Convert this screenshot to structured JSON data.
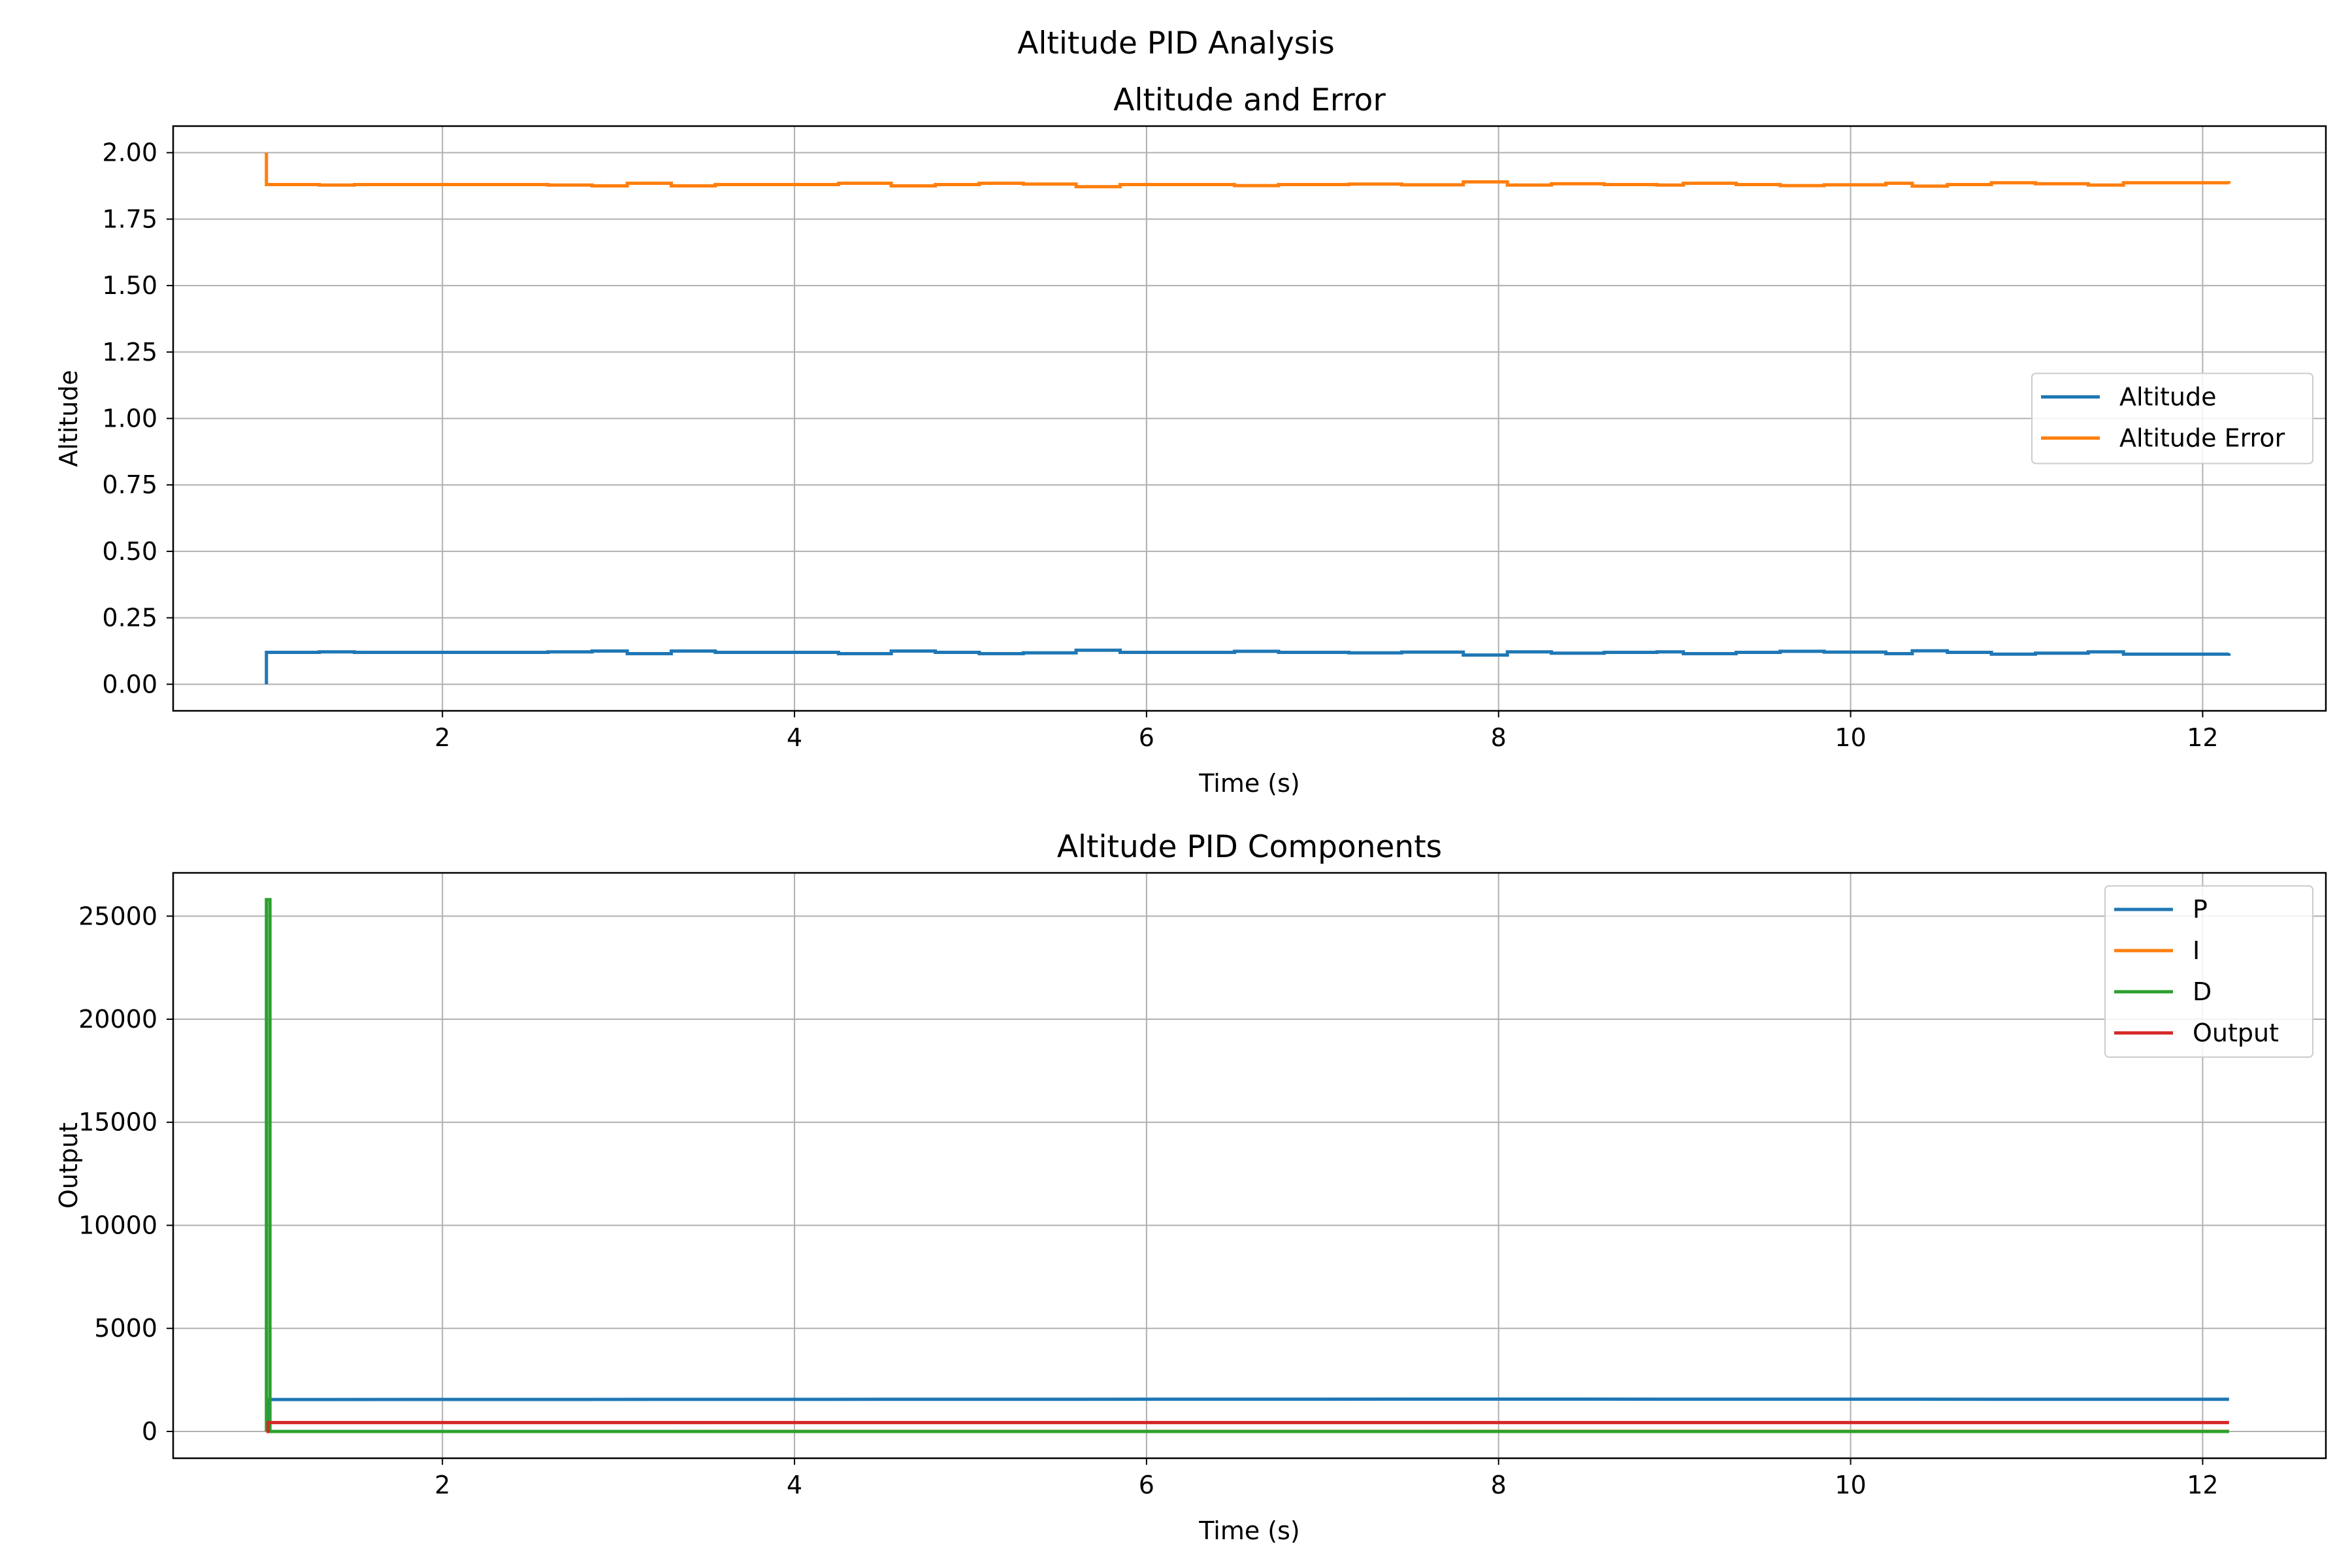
{
  "figure": {
    "suptitle": "Altitude PID Analysis"
  },
  "chart_data": [
    {
      "type": "line",
      "title": "Altitude and Error",
      "xlabel": "Time (s)",
      "ylabel": "Altitude",
      "xlim": [
        0.47,
        12.7
      ],
      "ylim": [
        -0.1,
        2.1
      ],
      "xticks": [
        2,
        4,
        6,
        8,
        10,
        12
      ],
      "xtick_labels": [
        "2",
        "4",
        "6",
        "8",
        "10",
        "12"
      ],
      "yticks": [
        0,
        0.25,
        0.5,
        0.75,
        1.0,
        1.25,
        1.5,
        1.75,
        2.0
      ],
      "ytick_labels": [
        "0.00",
        "0.25",
        "0.50",
        "0.75",
        "1.00",
        "1.25",
        "1.50",
        "1.75",
        "2.00"
      ],
      "grid": true,
      "legend_position": "center-right",
      "series": [
        {
          "name": "Altitude",
          "color": "#1f77b4",
          "step": true,
          "x": [
            1.0,
            1.0,
            1.3,
            1.5,
            2.6,
            2.85,
            3.05,
            3.3,
            3.55,
            4.25,
            4.55,
            4.8,
            5.05,
            5.3,
            5.6,
            5.85,
            6.5,
            6.75,
            7.15,
            7.45,
            7.8,
            8.05,
            8.3,
            8.6,
            8.9,
            9.05,
            9.35,
            9.6,
            9.85,
            10.2,
            10.35,
            10.55,
            10.8,
            11.05,
            11.35,
            11.55,
            12.15
          ],
          "y": [
            0.0,
            0.12,
            0.122,
            0.12,
            0.122,
            0.125,
            0.115,
            0.125,
            0.12,
            0.115,
            0.125,
            0.12,
            0.115,
            0.118,
            0.128,
            0.12,
            0.124,
            0.12,
            0.118,
            0.121,
            0.11,
            0.122,
            0.117,
            0.12,
            0.122,
            0.115,
            0.12,
            0.124,
            0.121,
            0.115,
            0.126,
            0.12,
            0.113,
            0.117,
            0.122,
            0.113,
            0.116
          ]
        },
        {
          "name": "Altitude Error",
          "color": "#ff7f0e",
          "step": true,
          "x": [
            1.0,
            1.0,
            1.3,
            1.5,
            2.6,
            2.85,
            3.05,
            3.3,
            3.55,
            4.25,
            4.55,
            4.8,
            5.05,
            5.3,
            5.6,
            5.85,
            6.5,
            6.75,
            7.15,
            7.45,
            7.8,
            8.05,
            8.3,
            8.6,
            8.9,
            9.05,
            9.35,
            9.6,
            9.85,
            10.2,
            10.35,
            10.55,
            10.8,
            11.05,
            11.35,
            11.55,
            12.15
          ],
          "y": [
            2.0,
            1.88,
            1.878,
            1.88,
            1.878,
            1.875,
            1.885,
            1.875,
            1.88,
            1.885,
            1.875,
            1.88,
            1.885,
            1.882,
            1.872,
            1.88,
            1.876,
            1.88,
            1.882,
            1.879,
            1.89,
            1.878,
            1.883,
            1.88,
            1.878,
            1.885,
            1.88,
            1.876,
            1.879,
            1.885,
            1.874,
            1.88,
            1.887,
            1.883,
            1.878,
            1.887,
            1.884
          ]
        }
      ]
    },
    {
      "type": "line",
      "title": "Altitude PID Components",
      "xlabel": "Time (s)",
      "ylabel": "Output",
      "xlim": [
        0.47,
        12.7
      ],
      "ylim": [
        -1300,
        27100
      ],
      "xticks": [
        2,
        4,
        6,
        8,
        10,
        12
      ],
      "xtick_labels": [
        "2",
        "4",
        "6",
        "8",
        "10",
        "12"
      ],
      "yticks": [
        0,
        5000,
        10000,
        15000,
        20000,
        25000
      ],
      "ytick_labels": [
        "0",
        "5000",
        "10000",
        "15000",
        "20000",
        "25000"
      ],
      "grid": true,
      "legend_position": "upper right",
      "series": [
        {
          "name": "P",
          "color": "#1f77b4",
          "x": [
            1.0,
            1.01,
            1.01,
            4.5,
            8.0,
            12.15
          ],
          "y": [
            0,
            0,
            1550,
            1560,
            1570,
            1560
          ]
        },
        {
          "name": "I",
          "color": "#ff7f0e",
          "x": [
            1.0,
            12.15
          ],
          "y": [
            0,
            10
          ]
        },
        {
          "name": "D",
          "color": "#2ca02c",
          "x": [
            1.0,
            1.0,
            1.02,
            1.02,
            12.15
          ],
          "y": [
            0,
            25800,
            25800,
            0,
            0
          ]
        },
        {
          "name": "Output",
          "color": "#d62728",
          "x": [
            1.0,
            1.01,
            1.01,
            12.15
          ],
          "y": [
            0,
            0,
            430,
            430
          ]
        }
      ]
    }
  ]
}
